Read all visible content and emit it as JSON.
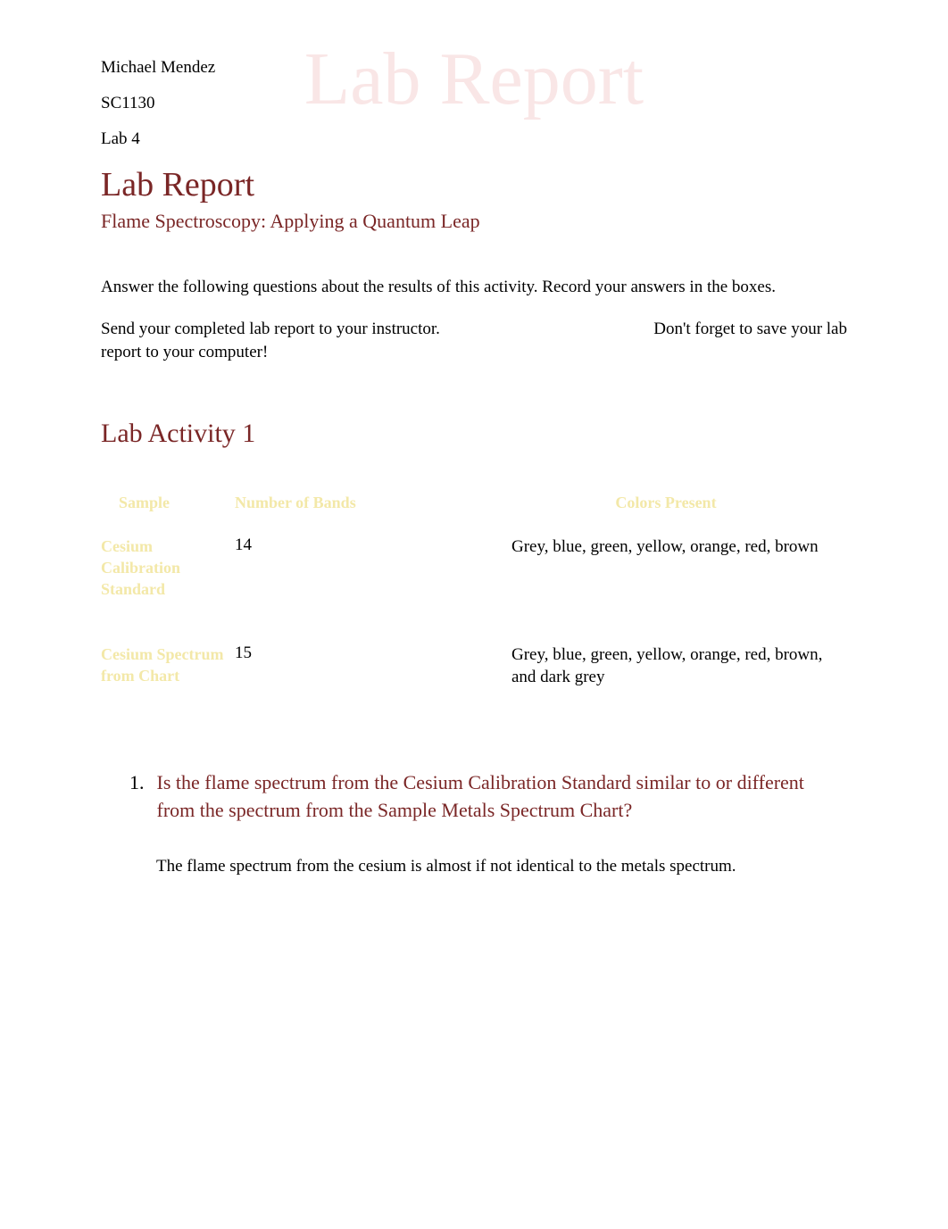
{
  "watermark": "Lab Report",
  "header": {
    "name": "Michael Mendez",
    "course": "SC1130",
    "lab": "Lab 4"
  },
  "title": "Lab Report",
  "subtitle": "Flame Spectroscopy: Applying a Quantum Leap",
  "instructions": {
    "para1": "Answer the following questions about the results of this activity. Record your answers in the boxes.",
    "para2_left": "Send your completed lab report to your instructor.",
    "para2_right": "Don't forget to save your lab",
    "para2_cont": "report to your computer!"
  },
  "activity": {
    "title": "Lab Activity 1"
  },
  "table": {
    "headers": {
      "sample": "Sample",
      "bands": "Number of Bands",
      "colors": "Colors Present"
    },
    "rows": [
      {
        "sample": "Cesium Calibration Standard",
        "bands": "14",
        "colors": "Grey, blue, green, yellow, orange, red, brown"
      },
      {
        "sample": "Cesium Spectrum from Chart",
        "bands": "15",
        "colors": "Grey, blue, green, yellow, orange, red, brown, and dark grey"
      }
    ]
  },
  "question": {
    "number": "1.",
    "text": "Is the flame spectrum from the Cesium Calibration Standard similar to or different from the spectrum from the Sample Metals Spectrum Chart?",
    "answer": "The flame spectrum from the cesium is almost if not identical to the metals spectrum."
  },
  "colors": {
    "maroon": "#7a2626",
    "pale_yellow": "#f3e8a8",
    "watermark_pink": "#f9e6e6",
    "black": "#000000",
    "white": "#ffffff"
  }
}
